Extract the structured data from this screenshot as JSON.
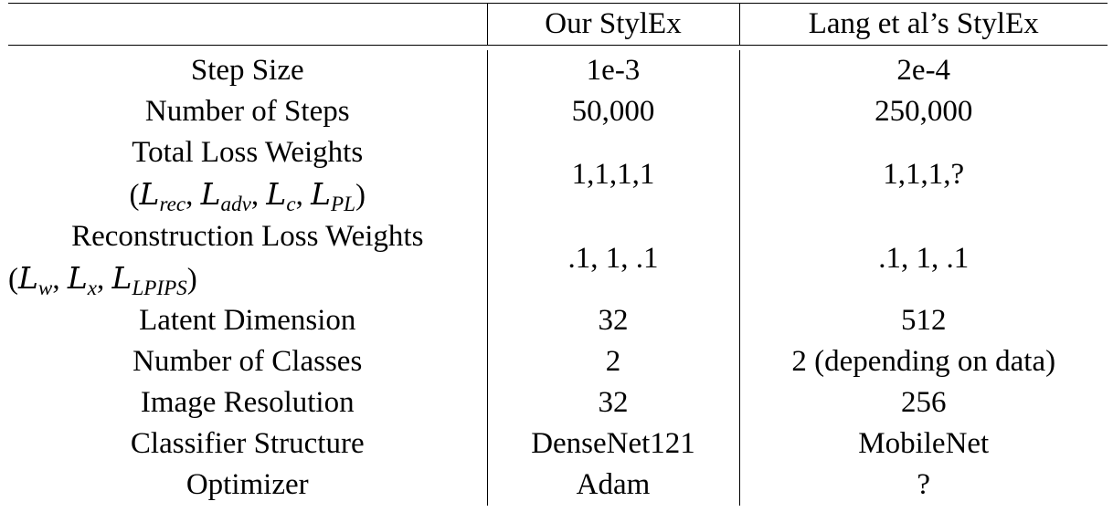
{
  "header": {
    "col0": "",
    "col1": "Our StylEx",
    "col2": "Lang et al’s StylEx"
  },
  "rows": [
    {
      "label": "Step Size",
      "ours": "1e-3",
      "lang": "2e-4"
    },
    {
      "label": "Number of Steps",
      "ours": "50,000",
      "lang": "250,000"
    },
    {
      "label": "Total Loss Weights",
      "ours": "1,1,1,1",
      "lang": "1,1,1,?"
    },
    {
      "label": "Reconstruction Loss Weights",
      "ours": ".1, 1, .1",
      "lang": ".1, 1, .1"
    },
    {
      "label": "Latent Dimension",
      "ours": "32",
      "lang": "512"
    },
    {
      "label": "Number of Classes",
      "ours": "2",
      "lang": "2 (depending on data)"
    },
    {
      "label": "Image Resolution",
      "ours": "32",
      "lang": "256"
    },
    {
      "label": "Classifier Structure",
      "ours": "DenseNet121",
      "lang": "MobileNet"
    },
    {
      "label": "Optimizer",
      "ours": "Adam",
      "lang": "?"
    }
  ],
  "math": {
    "total_loss_terms": [
      "rec",
      "adv",
      "c",
      "PL"
    ],
    "recon_loss_terms": [
      "w",
      "x",
      "LPIPS"
    ]
  }
}
